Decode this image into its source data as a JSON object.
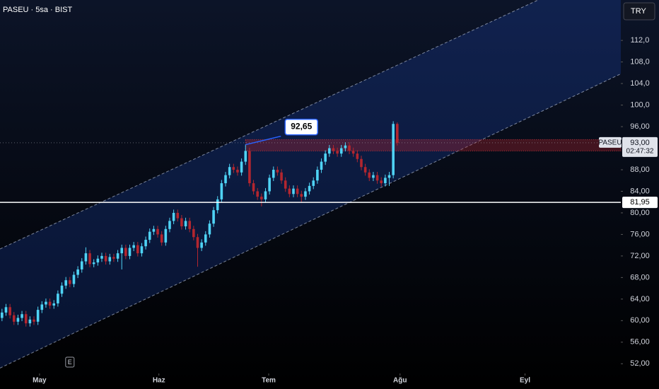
{
  "title": "PASEU · 5sa · BIST",
  "currency": "TRY",
  "chart_data": {
    "type": "candlestick",
    "open": [
      60.5,
      61.5,
      62.5,
      61.0,
      59.8,
      60.5,
      61.2,
      59.5,
      60.2,
      59.8,
      62.0,
      63.0,
      63.5,
      62.8,
      63.2,
      65.0,
      66.5,
      67.5,
      66.8,
      68.5,
      69.5,
      71.0,
      72.5,
      70.5,
      70.8,
      71.5,
      72.0,
      71.0,
      71.8,
      71.5,
      72.5,
      73.5,
      72.0,
      73.5,
      74.0,
      72.5,
      73.8,
      75.0,
      76.5,
      77.0,
      76.0,
      74.5,
      77.0,
      78.5,
      80.0,
      79.0,
      77.5,
      78.5,
      77.0,
      75.5,
      73.5,
      74.5,
      76.0,
      78.0,
      80.5,
      82.5,
      85.5,
      87.0,
      88.5,
      88.0,
      87.5,
      89.5,
      91.5,
      85.5,
      84.0,
      83.0,
      82.5,
      84.0,
      86.5,
      88.0,
      87.5,
      86.0,
      84.5,
      83.5,
      84.5,
      83.5,
      83.0,
      84.0,
      85.0,
      86.0,
      88.0,
      89.5,
      91.0,
      92.0,
      91.5,
      91.0,
      92.0,
      92.5,
      91.5,
      91.0,
      90.0,
      88.5,
      87.5,
      86.5,
      87.0,
      86.0,
      85.5,
      86.5,
      87.0,
      96.5
    ],
    "high": [
      62.2,
      63.1,
      63.1,
      61.6,
      61.1,
      61.8,
      61.8,
      60.8,
      60.8,
      62.6,
      63.6,
      64.1,
      64.1,
      63.8,
      65.6,
      67.1,
      68.1,
      68.1,
      69.1,
      70.1,
      71.6,
      73.6,
      73.1,
      71.4,
      72.1,
      72.6,
      72.6,
      72.4,
      72.4,
      73.1,
      74.1,
      74.1,
      74.1,
      74.6,
      74.6,
      74.4,
      75.6,
      77.1,
      77.6,
      77.6,
      76.6,
      77.6,
      79.1,
      80.6,
      80.6,
      79.6,
      79.1,
      79.1,
      77.6,
      76.1,
      75.1,
      76.6,
      78.6,
      81.1,
      83.1,
      86.1,
      87.6,
      89.1,
      89.1,
      88.6,
      90.1,
      92.65,
      92.1,
      86.1,
      84.6,
      83.6,
      84.6,
      87.1,
      88.6,
      88.6,
      88.1,
      86.6,
      85.1,
      85.1,
      85.1,
      84.1,
      84.6,
      85.6,
      86.6,
      88.6,
      90.1,
      91.6,
      92.6,
      92.6,
      92.1,
      92.6,
      93.1,
      93.1,
      92.1,
      91.6,
      90.6,
      89.1,
      88.1,
      87.6,
      87.6,
      86.6,
      87.1,
      87.6,
      97.0,
      96.8
    ],
    "low": [
      59.9,
      60.9,
      60.4,
      59.2,
      59.2,
      59.9,
      58.9,
      58.9,
      59.2,
      59.2,
      61.4,
      62.4,
      62.2,
      62.2,
      62.6,
      64.4,
      65.9,
      66.2,
      66.2,
      67.9,
      68.9,
      70.4,
      69.9,
      69.9,
      70.2,
      70.9,
      70.4,
      70.4,
      70.9,
      70.9,
      69.5,
      71.4,
      71.4,
      72.9,
      71.9,
      71.9,
      73.2,
      74.4,
      75.9,
      75.4,
      73.9,
      73.9,
      76.4,
      77.9,
      78.4,
      76.9,
      76.9,
      76.4,
      74.9,
      70.0,
      72.9,
      73.9,
      75.4,
      77.4,
      79.9,
      81.9,
      84.9,
      86.4,
      87.4,
      86.9,
      86.9,
      88.9,
      84.9,
      83.4,
      82.4,
      81.2,
      81.9,
      83.4,
      85.9,
      86.9,
      85.4,
      83.9,
      82.9,
      82.9,
      82.9,
      82.0,
      82.4,
      83.4,
      84.4,
      85.4,
      87.4,
      88.9,
      90.4,
      90.9,
      90.4,
      90.4,
      91.4,
      90.9,
      90.4,
      89.4,
      87.9,
      86.9,
      85.9,
      85.9,
      85.4,
      84.9,
      84.9,
      85.0,
      86.4,
      92.5
    ],
    "close": [
      61.5,
      62.5,
      61.0,
      59.8,
      60.5,
      61.2,
      59.5,
      60.2,
      59.8,
      62.0,
      63.0,
      63.5,
      62.8,
      63.2,
      65.0,
      66.5,
      67.5,
      66.8,
      68.5,
      69.5,
      71.0,
      72.5,
      70.5,
      70.8,
      71.5,
      72.0,
      71.0,
      71.8,
      71.5,
      72.5,
      73.5,
      72.0,
      73.5,
      74.0,
      72.5,
      73.8,
      75.0,
      76.5,
      77.0,
      76.0,
      74.5,
      77.0,
      78.5,
      80.0,
      79.0,
      77.5,
      78.5,
      77.0,
      75.5,
      73.5,
      74.5,
      76.0,
      78.0,
      80.5,
      82.5,
      85.5,
      87.0,
      88.5,
      88.0,
      87.5,
      89.5,
      91.5,
      85.5,
      84.0,
      83.0,
      82.5,
      84.0,
      86.5,
      88.0,
      87.5,
      86.0,
      84.5,
      83.5,
      84.5,
      83.5,
      83.0,
      84.0,
      85.0,
      86.0,
      88.0,
      89.5,
      91.0,
      92.0,
      91.5,
      91.0,
      92.0,
      92.5,
      91.5,
      91.0,
      90.0,
      88.5,
      87.5,
      86.5,
      87.0,
      86.0,
      85.5,
      86.5,
      87.0,
      96.5,
      93.0
    ],
    "up_color": "#4fd3f5",
    "down_color": "#b3262f",
    "xlim": [
      -0.5,
      155
    ],
    "xticks": [
      {
        "value": 9.4,
        "label": "May"
      },
      {
        "value": 39.3,
        "label": "Haz"
      },
      {
        "value": 66.8,
        "label": "Tem"
      },
      {
        "value": 99.7,
        "label": "Ağu"
      },
      {
        "value": 131,
        "label": "Eyl"
      }
    ],
    "ylim": [
      50.2,
      119.5
    ],
    "yticks": [
      {
        "value": 112,
        "label": "112,0"
      },
      {
        "value": 108,
        "label": "108,0"
      },
      {
        "value": 104,
        "label": "104,0"
      },
      {
        "value": 100,
        "label": "100,0"
      },
      {
        "value": 96,
        "label": "96,00"
      },
      {
        "value": 88,
        "label": "88,00"
      },
      {
        "value": 84,
        "label": "84,00"
      },
      {
        "value": 80,
        "label": "80,00"
      },
      {
        "value": 76,
        "label": "76,00"
      },
      {
        "value": 72,
        "label": "72,00"
      },
      {
        "value": 68,
        "label": "68,00"
      },
      {
        "value": 64,
        "label": "64,00"
      },
      {
        "value": 60,
        "label": "60,00"
      },
      {
        "value": 56,
        "label": "56,00"
      },
      {
        "value": 52,
        "label": "52,00"
      }
    ],
    "channel": {
      "upper": [
        [
          -0.5,
          73.3
        ],
        [
          155,
          126.6
        ]
      ],
      "lower": [
        [
          -0.5,
          51.2
        ],
        [
          155,
          105.8
        ]
      ]
    },
    "zone": {
      "start": 61,
      "low": 91.5,
      "high": 93.6
    },
    "support": {
      "value": 81.95,
      "label": "81,95"
    },
    "last_price": {
      "symbol": "PASEU",
      "value": 93.0,
      "label": "93,00",
      "countdown": "02:47:32"
    },
    "annotation": {
      "x": 61,
      "value": 92.65,
      "label": "92,65"
    },
    "events": [
      {
        "x": 17,
        "label": "E"
      }
    ]
  }
}
